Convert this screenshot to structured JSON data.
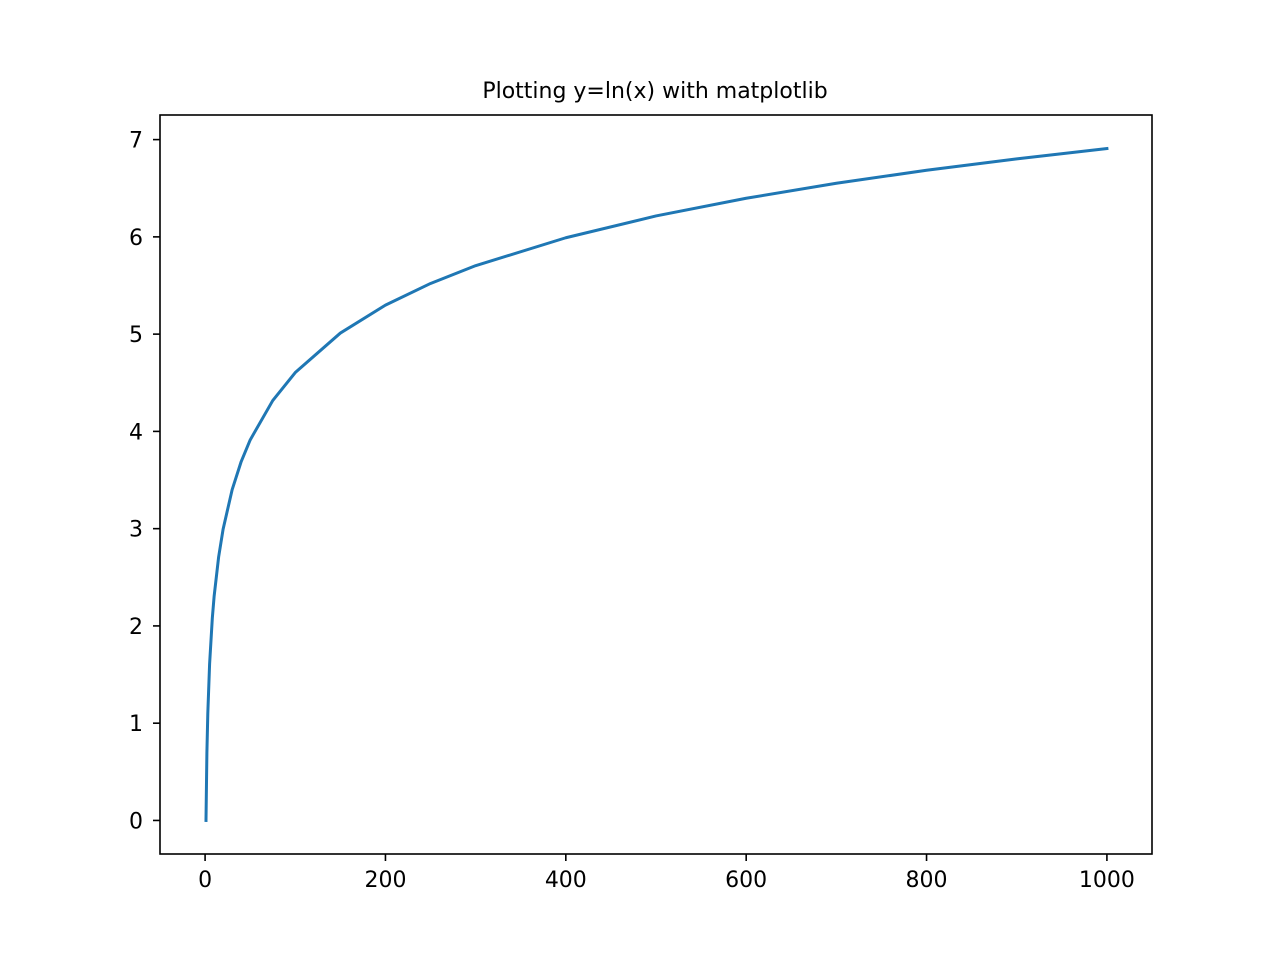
{
  "chart_data": {
    "type": "line",
    "title": "Plotting y=ln(x) with matplotlib",
    "xlabel": "",
    "ylabel": "",
    "xlim": [
      -50,
      1050
    ],
    "ylim": [
      -0.345,
      7.253
    ],
    "x_ticks": [
      0,
      200,
      400,
      600,
      800,
      1000
    ],
    "y_ticks": [
      0,
      1,
      2,
      3,
      4,
      5,
      6,
      7
    ],
    "grid": false,
    "legend": "none",
    "series": [
      {
        "color": "#1f77b4",
        "x": [
          1,
          2,
          3,
          5,
          8,
          10,
          15,
          20,
          30,
          40,
          50,
          75,
          100,
          150,
          200,
          250,
          300,
          400,
          500,
          600,
          700,
          800,
          900,
          1000
        ],
        "y": [
          0,
          0.693,
          1.099,
          1.609,
          2.079,
          2.303,
          2.708,
          2.996,
          3.401,
          3.689,
          3.912,
          4.317,
          4.605,
          5.011,
          5.298,
          5.521,
          5.704,
          5.991,
          6.215,
          6.397,
          6.551,
          6.685,
          6.802,
          6.908
        ]
      }
    ]
  }
}
